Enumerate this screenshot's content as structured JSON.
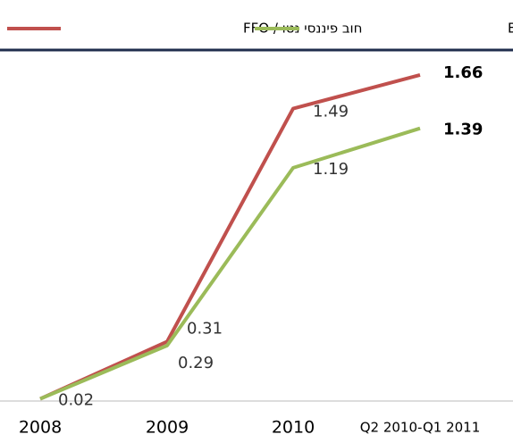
{
  "chart_data": {
    "type": "line",
    "categories": [
      "2008",
      "2009",
      "2010",
      "Q2 2010-Q1 2011"
    ],
    "series": [
      {
        "name": "חוב פיננסי נטו / FFO",
        "color": "#c0504d",
        "values": [
          0.02,
          0.31,
          1.49,
          1.66
        ],
        "value_labels": [
          "0.02",
          "0.31",
          "1.49",
          "1.66"
        ]
      },
      {
        "name": "חוב פיננסי נטו / EBITDA",
        "color": "#9bbb59",
        "values": [
          0.02,
          0.29,
          1.19,
          1.39
        ],
        "value_labels": [
          null,
          "0.29",
          "1.19",
          "1.39"
        ]
      }
    ],
    "ylim": [
      0,
      1.8
    ],
    "legend": "top"
  }
}
